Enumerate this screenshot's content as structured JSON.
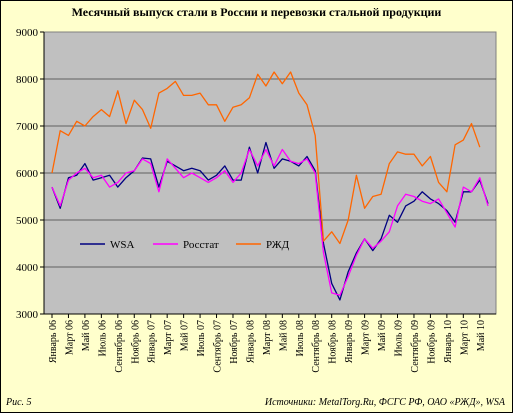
{
  "chart_data": {
    "type": "line",
    "title": "Месячный выпуск стали в России и перевозки стальной продукции",
    "ylim": [
      3000,
      9000
    ],
    "yticks": [
      3000,
      4000,
      5000,
      6000,
      7000,
      8000,
      9000
    ],
    "grid": true,
    "legend_position": "lower-left",
    "x_tick_labels": [
      "Январь 06",
      "Март 06",
      "Май 06",
      "Июль 06",
      "Сентябрь 06",
      "Ноябрь 06",
      "Январь 07",
      "Март 07",
      "Май 07",
      "Июль 07",
      "Сентябрь 07",
      "Ноябрь 07",
      "Январь 08",
      "Март 08",
      "Май 08",
      "Июль 08",
      "Сентябрь 08",
      "Ноябрь 08",
      "Январь 09",
      "Март 09",
      "Май 09",
      "Июль 09",
      "Сентябрь 09",
      "Ноябрь 09",
      "Январь 10",
      "Март 10",
      "Май 10"
    ],
    "series": [
      {
        "name": "WSA",
        "color": "#000080",
        "values": [
          5700,
          5250,
          5900,
          5950,
          6200,
          5850,
          5900,
          5950,
          5700,
          5900,
          6050,
          6320,
          6300,
          5700,
          6250,
          6150,
          6050,
          6100,
          6050,
          5850,
          5950,
          6150,
          5850,
          5850,
          6550,
          6000,
          6650,
          6100,
          6300,
          6250,
          6150,
          6350,
          6050,
          4500,
          3650,
          3300,
          3900,
          4300,
          4600,
          4350,
          4600,
          5100,
          4950,
          5300,
          5400,
          5600,
          5450,
          5350,
          5200,
          4950,
          5600,
          5600,
          5850,
          5350
        ]
      },
      {
        "name": "Росстат",
        "color": "#ff00ff",
        "values": [
          5700,
          5300,
          5850,
          6000,
          6100,
          5900,
          5950,
          5700,
          5800,
          6000,
          6050,
          6300,
          6200,
          5600,
          6300,
          6100,
          5900,
          6000,
          5900,
          5800,
          5900,
          6050,
          5800,
          6000,
          6500,
          6150,
          6500,
          6150,
          6500,
          6250,
          6200,
          6300,
          6000,
          4300,
          3450,
          3400,
          3800,
          4250,
          4600,
          4400,
          4550,
          4750,
          5300,
          5550,
          5500,
          5400,
          5350,
          5450,
          5150,
          4850,
          5700,
          5600,
          5900,
          5300
        ]
      },
      {
        "name": "РЖД",
        "color": "#ff6600",
        "values": [
          6000,
          6900,
          6800,
          7100,
          7000,
          7200,
          7350,
          7200,
          7750,
          7050,
          7550,
          7350,
          6950,
          7700,
          7800,
          7950,
          7650,
          7650,
          7700,
          7450,
          7450,
          7100,
          7400,
          7450,
          7600,
          8100,
          7850,
          8150,
          7900,
          8150,
          7700,
          7450,
          6800,
          4550,
          4750,
          4500,
          5000,
          5950,
          5250,
          5500,
          5550,
          6200,
          6450,
          6400,
          6400,
          6150,
          6350,
          5800,
          5600,
          6600,
          6700,
          7050,
          6550
        ]
      }
    ]
  },
  "footer": {
    "figure_label": "Рис. 5",
    "sources": "Источники: MetalTorg.Ru, ФСГС РФ, ОАО «РЖД», WSA"
  }
}
